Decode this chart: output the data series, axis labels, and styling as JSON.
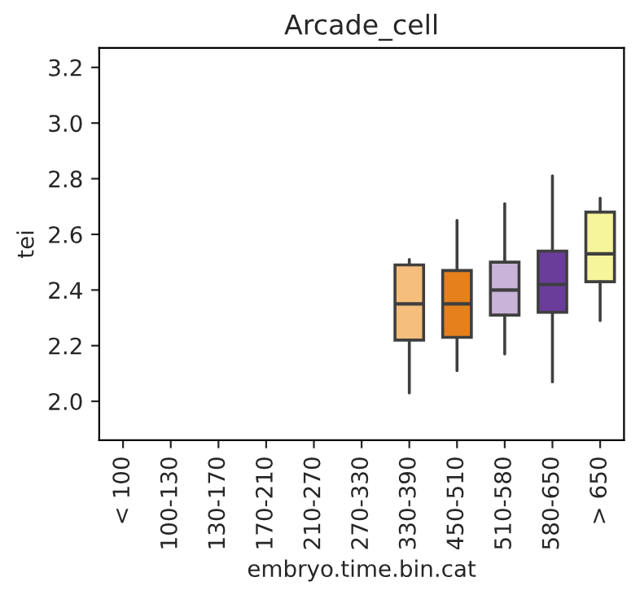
{
  "chart_data": {
    "type": "box",
    "title": "Arcade_cell",
    "xlabel": "embryo.time.bin.cat",
    "ylabel": "tei",
    "categories": [
      "< 100",
      "100-130",
      "130-170",
      "170-210",
      "210-270",
      "270-330",
      "330-390",
      "450-510",
      "510-580",
      "580-650",
      "> 650"
    ],
    "boxes": [
      null,
      null,
      null,
      null,
      null,
      null,
      {
        "low": 2.03,
        "q1": 2.22,
        "median": 2.35,
        "q3": 2.49,
        "high": 2.51
      },
      {
        "low": 2.11,
        "q1": 2.23,
        "median": 2.35,
        "q3": 2.47,
        "high": 2.65
      },
      {
        "low": 2.17,
        "q1": 2.31,
        "median": 2.4,
        "q3": 2.5,
        "high": 2.71
      },
      {
        "low": 2.07,
        "q1": 2.32,
        "median": 2.42,
        "q3": 2.54,
        "high": 2.81
      },
      {
        "low": 2.29,
        "q1": 2.43,
        "median": 2.53,
        "q3": 2.68,
        "high": 2.73
      }
    ],
    "colors": [
      null,
      null,
      null,
      null,
      null,
      null,
      "#f5be7c",
      "#e6801c",
      "#c9b3d8",
      "#6a3d9a",
      "#f6f59c"
    ],
    "ylim": [
      1.86,
      3.27
    ],
    "yticks": [
      {
        "value": 2.0,
        "label": "2.0"
      },
      {
        "value": 2.2,
        "label": "2.2"
      },
      {
        "value": 2.4,
        "label": "2.4"
      },
      {
        "value": 2.6,
        "label": "2.6"
      },
      {
        "value": 2.8,
        "label": "2.8"
      },
      {
        "value": 3.0,
        "label": "3.0"
      },
      {
        "value": 3.2,
        "label": "3.2"
      }
    ],
    "grid": false
  }
}
